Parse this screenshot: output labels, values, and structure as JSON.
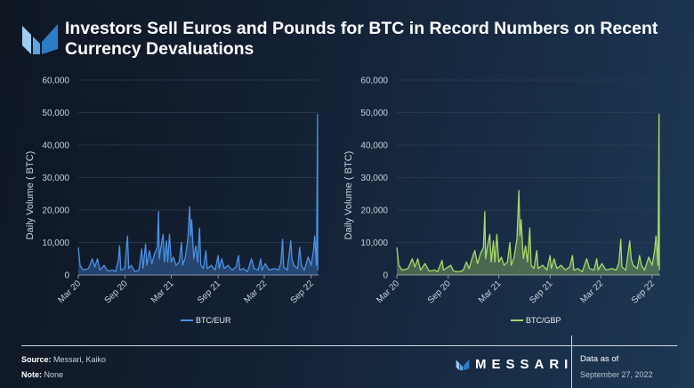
{
  "header": {
    "title": "Investors Sell Euros and Pounds for BTC in Record Numbers on Recent Currency Devaluations",
    "logo": "messari-logo"
  },
  "footer": {
    "source_label": "Source:",
    "source": "Messari, Kaiko",
    "note_label": "Note:",
    "note": "None",
    "brand": "MESSARI",
    "data_as_of_label": "Data as of",
    "data_as_of": "September 27, 2022"
  },
  "chart_data": [
    {
      "type": "line",
      "ylabel": "Daily Volume ( BTC)",
      "ylim": [
        0,
        60000
      ],
      "yticks": [
        "0",
        "10,000",
        "20,000",
        "30,000",
        "40,000",
        "50,000",
        "60,000"
      ],
      "xticks": [
        "Mar 20",
        "Sep 20",
        "Mar 21",
        "Sep 21",
        "Mar 22",
        "Sep 22"
      ],
      "xlim": [
        "2020-03-01",
        "2022-09-30"
      ],
      "grid": true,
      "legend": "bottom",
      "series": [
        {
          "name": "BTC/EUR",
          "color": "#4a90e2",
          "points": [
            [
              "2020-03-01",
              8500
            ],
            [
              "2020-03-08",
              3000
            ],
            [
              "2020-03-20",
              1500
            ],
            [
              "2020-04-10",
              2000
            ],
            [
              "2020-04-25",
              5000
            ],
            [
              "2020-05-05",
              2500
            ],
            [
              "2020-05-15",
              5000
            ],
            [
              "2020-05-25",
              1500
            ],
            [
              "2020-06-10",
              3000
            ],
            [
              "2020-06-25",
              1200
            ],
            [
              "2020-07-15",
              1500
            ],
            [
              "2020-07-25",
              1000
            ],
            [
              "2020-08-05",
              4500
            ],
            [
              "2020-08-10",
              9000
            ],
            [
              "2020-08-15",
              1500
            ],
            [
              "2020-08-30",
              2000
            ],
            [
              "2020-09-10",
              12000
            ],
            [
              "2020-09-15",
              2000
            ],
            [
              "2020-09-25",
              3000
            ],
            [
              "2020-10-10",
              1000
            ],
            [
              "2020-10-25",
              1500
            ],
            [
              "2020-11-05",
              8000
            ],
            [
              "2020-11-10",
              2000
            ],
            [
              "2020-11-20",
              9500
            ],
            [
              "2020-11-25",
              3000
            ],
            [
              "2020-12-05",
              7500
            ],
            [
              "2020-12-15",
              3500
            ],
            [
              "2020-12-25",
              6500
            ],
            [
              "2021-01-05",
              8500
            ],
            [
              "2021-01-10",
              19500
            ],
            [
              "2021-01-13",
              5000
            ],
            [
              "2021-01-20",
              9000
            ],
            [
              "2021-01-28",
              12500
            ],
            [
              "2021-02-02",
              4000
            ],
            [
              "2021-02-10",
              10500
            ],
            [
              "2021-02-15",
              4000
            ],
            [
              "2021-02-22",
              12500
            ],
            [
              "2021-03-01",
              4000
            ],
            [
              "2021-03-10",
              5500
            ],
            [
              "2021-03-20",
              3000
            ],
            [
              "2021-04-01",
              4000
            ],
            [
              "2021-04-10",
              10000
            ],
            [
              "2021-04-15",
              3000
            ],
            [
              "2021-04-25",
              5500
            ],
            [
              "2021-05-05",
              11000
            ],
            [
              "2021-05-12",
              21000
            ],
            [
              "2021-05-16",
              12000
            ],
            [
              "2021-05-20",
              17000
            ],
            [
              "2021-05-28",
              5000
            ],
            [
              "2021-06-05",
              9000
            ],
            [
              "2021-06-12",
              4000
            ],
            [
              "2021-06-20",
              14500
            ],
            [
              "2021-06-25",
              3000
            ],
            [
              "2021-07-05",
              2000
            ],
            [
              "2021-07-15",
              7500
            ],
            [
              "2021-07-20",
              2000
            ],
            [
              "2021-08-05",
              3000
            ],
            [
              "2021-08-20",
              1500
            ],
            [
              "2021-09-01",
              6000
            ],
            [
              "2021-09-05",
              2000
            ],
            [
              "2021-09-15",
              5000
            ],
            [
              "2021-09-25",
              2000
            ],
            [
              "2021-10-10",
              3000
            ],
            [
              "2021-10-25",
              1500
            ],
            [
              "2021-11-10",
              2500
            ],
            [
              "2021-11-20",
              6000
            ],
            [
              "2021-11-25",
              1500
            ],
            [
              "2021-12-10",
              2000
            ],
            [
              "2021-12-25",
              1000
            ],
            [
              "2022-01-10",
              5000
            ],
            [
              "2022-01-20",
              2000
            ],
            [
              "2022-02-05",
              1500
            ],
            [
              "2022-02-15",
              5000
            ],
            [
              "2022-02-20",
              1500
            ],
            [
              "2022-03-05",
              3500
            ],
            [
              "2022-03-20",
              1500
            ],
            [
              "2022-04-10",
              2000
            ],
            [
              "2022-04-25",
              1500
            ],
            [
              "2022-05-05",
              3500
            ],
            [
              "2022-05-12",
              11000
            ],
            [
              "2022-05-16",
              2500
            ],
            [
              "2022-05-30",
              1500
            ],
            [
              "2022-06-13",
              10500
            ],
            [
              "2022-06-18",
              5000
            ],
            [
              "2022-06-25",
              3000
            ],
            [
              "2022-07-10",
              2000
            ],
            [
              "2022-07-18",
              8500
            ],
            [
              "2022-07-25",
              3000
            ],
            [
              "2022-08-05",
              1500
            ],
            [
              "2022-08-20",
              5500
            ],
            [
              "2022-09-01",
              3000
            ],
            [
              "2022-09-10",
              7500
            ],
            [
              "2022-09-15",
              12000
            ],
            [
              "2022-09-22",
              3000
            ],
            [
              "2022-09-26",
              49500
            ],
            [
              "2022-09-27",
              1500
            ]
          ]
        }
      ]
    },
    {
      "type": "line",
      "ylabel": "Daily Volume ( BTC)",
      "ylim": [
        0,
        60000
      ],
      "yticks": [
        "0",
        "10,000",
        "20,000",
        "30,000",
        "40,000",
        "50,000",
        "60,000"
      ],
      "xticks": [
        "Mar 20",
        "Sep 20",
        "Mar 21",
        "Sep 21",
        "Mar 22",
        "Sep 22"
      ],
      "xlim": [
        "2020-03-01",
        "2022-09-30"
      ],
      "grid": true,
      "legend": "bottom",
      "series": [
        {
          "name": "BTC/GBP",
          "color": "#a6d96a",
          "points": [
            [
              "2020-03-01",
              8500
            ],
            [
              "2020-03-08",
              3000
            ],
            [
              "2020-03-20",
              1500
            ],
            [
              "2020-04-10",
              2000
            ],
            [
              "2020-04-25",
              5000
            ],
            [
              "2020-05-05",
              2500
            ],
            [
              "2020-05-15",
              5000
            ],
            [
              "2020-05-25",
              1500
            ],
            [
              "2020-06-10",
              3500
            ],
            [
              "2020-06-25",
              1200
            ],
            [
              "2020-07-15",
              1500
            ],
            [
              "2020-07-25",
              1000
            ],
            [
              "2020-08-10",
              4500
            ],
            [
              "2020-08-15",
              1500
            ],
            [
              "2020-09-10",
              3000
            ],
            [
              "2020-09-20",
              1200
            ],
            [
              "2020-10-10",
              1000
            ],
            [
              "2020-10-25",
              1500
            ],
            [
              "2020-11-05",
              4000
            ],
            [
              "2020-11-15",
              2000
            ],
            [
              "2020-11-25",
              5000
            ],
            [
              "2020-12-05",
              7500
            ],
            [
              "2020-12-15",
              3500
            ],
            [
              "2020-12-25",
              6500
            ],
            [
              "2021-01-05",
              8500
            ],
            [
              "2021-01-10",
              19500
            ],
            [
              "2021-01-13",
              5000
            ],
            [
              "2021-01-20",
              9000
            ],
            [
              "2021-01-28",
              12500
            ],
            [
              "2021-02-02",
              4000
            ],
            [
              "2021-02-10",
              10500
            ],
            [
              "2021-02-15",
              4000
            ],
            [
              "2021-02-22",
              12500
            ],
            [
              "2021-03-01",
              4000
            ],
            [
              "2021-03-10",
              5500
            ],
            [
              "2021-03-20",
              3000
            ],
            [
              "2021-04-01",
              4000
            ],
            [
              "2021-04-10",
              10000
            ],
            [
              "2021-04-15",
              3000
            ],
            [
              "2021-04-25",
              5500
            ],
            [
              "2021-05-05",
              11000
            ],
            [
              "2021-05-12",
              26000
            ],
            [
              "2021-05-16",
              12000
            ],
            [
              "2021-05-20",
              17000
            ],
            [
              "2021-05-28",
              5000
            ],
            [
              "2021-06-05",
              9000
            ],
            [
              "2021-06-12",
              4000
            ],
            [
              "2021-06-20",
              14500
            ],
            [
              "2021-06-25",
              3000
            ],
            [
              "2021-07-05",
              2000
            ],
            [
              "2021-07-15",
              7500
            ],
            [
              "2021-07-20",
              2000
            ],
            [
              "2021-08-05",
              3000
            ],
            [
              "2021-08-20",
              1500
            ],
            [
              "2021-09-01",
              6000
            ],
            [
              "2021-09-05",
              2000
            ],
            [
              "2021-09-15",
              5000
            ],
            [
              "2021-09-25",
              2000
            ],
            [
              "2021-10-10",
              3000
            ],
            [
              "2021-10-25",
              1500
            ],
            [
              "2021-11-10",
              2500
            ],
            [
              "2021-11-20",
              6000
            ],
            [
              "2021-11-25",
              1500
            ],
            [
              "2021-12-10",
              2000
            ],
            [
              "2021-12-25",
              1000
            ],
            [
              "2022-01-10",
              5000
            ],
            [
              "2022-01-20",
              2000
            ],
            [
              "2022-02-05",
              1500
            ],
            [
              "2022-02-15",
              5000
            ],
            [
              "2022-02-20",
              1500
            ],
            [
              "2022-03-05",
              3500
            ],
            [
              "2022-03-20",
              1500
            ],
            [
              "2022-04-10",
              2000
            ],
            [
              "2022-04-25",
              1500
            ],
            [
              "2022-05-05",
              3500
            ],
            [
              "2022-05-12",
              11000
            ],
            [
              "2022-05-16",
              2500
            ],
            [
              "2022-05-30",
              1500
            ],
            [
              "2022-06-13",
              10500
            ],
            [
              "2022-06-18",
              5000
            ],
            [
              "2022-06-25",
              3000
            ],
            [
              "2022-07-10",
              2000
            ],
            [
              "2022-07-18",
              6000
            ],
            [
              "2022-07-25",
              3000
            ],
            [
              "2022-08-05",
              1500
            ],
            [
              "2022-08-20",
              5500
            ],
            [
              "2022-09-01",
              3000
            ],
            [
              "2022-09-10",
              7500
            ],
            [
              "2022-09-15",
              12000
            ],
            [
              "2022-09-22",
              3000
            ],
            [
              "2022-09-26",
              49500
            ],
            [
              "2022-09-27",
              1500
            ]
          ]
        }
      ]
    }
  ]
}
